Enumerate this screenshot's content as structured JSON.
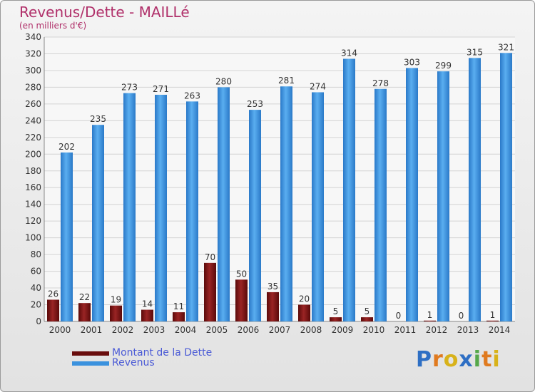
{
  "header": {
    "title": "Revenus/Dette - MAILLé",
    "subtitle": "(en milliers d'€)"
  },
  "chart_data": {
    "type": "bar",
    "categories": [
      "2000",
      "2001",
      "2002",
      "2003",
      "2004",
      "2005",
      "2006",
      "2007",
      "2008",
      "2009",
      "2010",
      "2011",
      "2012",
      "2013",
      "2014"
    ],
    "series": [
      {
        "name": "Montant de la Dette",
        "color": "#7a1212",
        "values": [
          26,
          22,
          19,
          14,
          11,
          70,
          50,
          35,
          20,
          5,
          5,
          0,
          1,
          0,
          1
        ]
      },
      {
        "name": "Revenus",
        "color": "#3b92de",
        "values": [
          202,
          235,
          273,
          271,
          263,
          280,
          253,
          281,
          274,
          314,
          278,
          303,
          299,
          315,
          321
        ]
      }
    ],
    "ylim": [
      0,
      340
    ],
    "yticks": [
      0,
      20,
      40,
      60,
      80,
      100,
      120,
      140,
      160,
      180,
      200,
      220,
      240,
      260,
      280,
      300,
      320,
      340
    ],
    "grid": true,
    "legend_position": "bottom-left"
  },
  "logo": {
    "text": "Proxiti",
    "colors": [
      "#2e6fc4",
      "#e07a1f",
      "#d8b21a",
      "#2e6fc4",
      "#56a84a",
      "#e07a1f",
      "#d8b21a"
    ]
  }
}
